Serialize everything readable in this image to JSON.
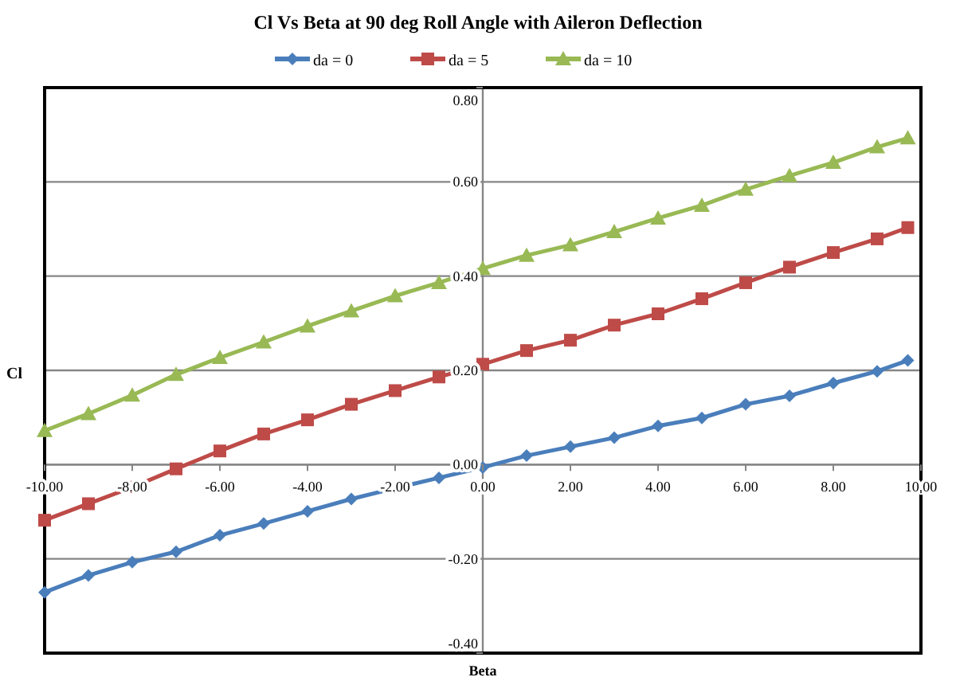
{
  "chart_data": {
    "type": "line",
    "title": "Cl Vs Beta at 90 deg Roll Angle with Aileron Deflection",
    "xlabel": "Beta",
    "ylabel": "Cl",
    "x": [
      -10,
      -9,
      -8,
      -7,
      -6,
      -5,
      -4,
      -3,
      -2,
      -1,
      0,
      1,
      2,
      3,
      4,
      5,
      6,
      7,
      8,
      9,
      9.7
    ],
    "series": [
      {
        "name": "da = 0",
        "color": "#4a7ebb",
        "marker": "diamond",
        "values": [
          -0.271,
          -0.235,
          -0.207,
          -0.185,
          -0.15,
          -0.125,
          -0.099,
          -0.073,
          -0.05,
          -0.028,
          -0.006,
          0.019,
          0.038,
          0.057,
          0.082,
          0.099,
          0.128,
          0.146,
          0.173,
          0.198,
          0.221
        ]
      },
      {
        "name": "da = 5",
        "color": "#be4b48",
        "marker": "square",
        "values": [
          -0.118,
          -0.083,
          -0.048,
          -0.009,
          0.029,
          0.065,
          0.095,
          0.128,
          0.157,
          0.186,
          0.213,
          0.242,
          0.264,
          0.296,
          0.32,
          0.352,
          0.386,
          0.419,
          0.45,
          0.479,
          0.503
        ]
      },
      {
        "name": "da = 10",
        "color": "#98b954",
        "marker": "triangle",
        "values": [
          0.072,
          0.108,
          0.147,
          0.191,
          0.227,
          0.26,
          0.294,
          0.326,
          0.358,
          0.386,
          0.416,
          0.444,
          0.466,
          0.494,
          0.523,
          0.55,
          0.584,
          0.613,
          0.641,
          0.674,
          0.693
        ]
      }
    ],
    "xlim": [
      -10,
      10
    ],
    "xticks": [
      {
        "value": -10,
        "label": "-10.00"
      },
      {
        "value": -8,
        "label": "-8.00"
      },
      {
        "value": -6,
        "label": "-6.00"
      },
      {
        "value": -4,
        "label": "-4.00"
      },
      {
        "value": -2,
        "label": "-2.00"
      },
      {
        "value": 0,
        "label": "0.00"
      },
      {
        "value": 2,
        "label": "2.00"
      },
      {
        "value": 4,
        "label": "4.00"
      },
      {
        "value": 6,
        "label": "6.00"
      },
      {
        "value": 8,
        "label": "8.00"
      },
      {
        "value": 10,
        "label": "10.00"
      }
    ],
    "ylim": [
      -0.4,
      0.8
    ],
    "yticks": [
      {
        "value": -0.4,
        "label": "-0.40"
      },
      {
        "value": -0.2,
        "label": "-0.20"
      },
      {
        "value": 0,
        "label": "0.00"
      },
      {
        "value": 0.2,
        "label": "0.20"
      },
      {
        "value": 0.4,
        "label": "0.40"
      },
      {
        "value": 0.6,
        "label": "0.60"
      },
      {
        "value": 0.8,
        "label": "0.80"
      }
    ],
    "grid": "y",
    "legend": "top",
    "line_style": "solid"
  }
}
